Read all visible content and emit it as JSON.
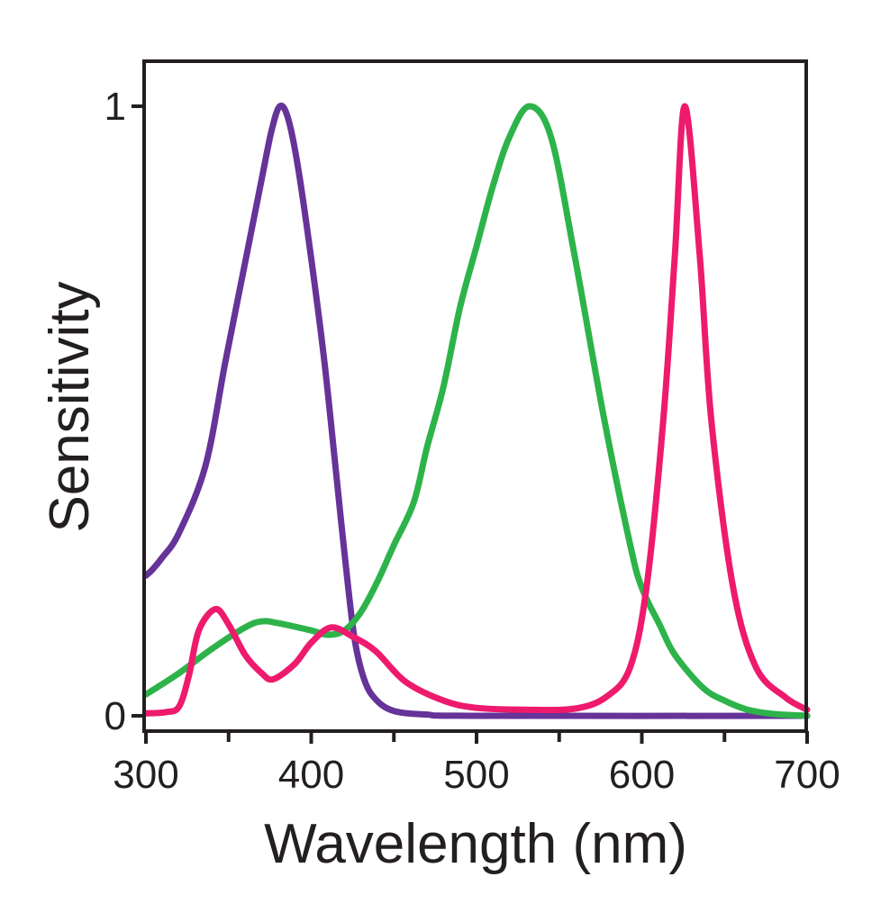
{
  "chart_data": {
    "type": "line",
    "title": "",
    "xlabel": "Wavelength (nm)",
    "ylabel": "Sensitivity",
    "xlim": [
      300,
      700
    ],
    "ylim": [
      0,
      1
    ],
    "x_ticks": [
      300,
      400,
      500,
      600,
      700
    ],
    "x_minor_ticks": [
      350,
      450,
      550,
      650
    ],
    "y_ticks": [
      0,
      1
    ],
    "grid": false,
    "legend": "none",
    "series": [
      {
        "color": "#663399",
        "points": [
          [
            300,
            0.23
          ],
          [
            304,
            0.24
          ],
          [
            310,
            0.26
          ],
          [
            320,
            0.3
          ],
          [
            336,
            0.41
          ],
          [
            348,
            0.58
          ],
          [
            359,
            0.73
          ],
          [
            370,
            0.88
          ],
          [
            376,
            0.96
          ],
          [
            381,
            1.0
          ],
          [
            386,
            0.98
          ],
          [
            392,
            0.9
          ],
          [
            400,
            0.75
          ],
          [
            408,
            0.58
          ],
          [
            415,
            0.4
          ],
          [
            420,
            0.27
          ],
          [
            426,
            0.13
          ],
          [
            432,
            0.06
          ],
          [
            439,
            0.027
          ],
          [
            450,
            0.008
          ],
          [
            470,
            0.002
          ],
          [
            500,
            0
          ],
          [
            700,
            0
          ]
        ]
      },
      {
        "color": "#2db34a",
        "points": [
          [
            300,
            0.035
          ],
          [
            320,
            0.07
          ],
          [
            340,
            0.11
          ],
          [
            360,
            0.145
          ],
          [
            370,
            0.155
          ],
          [
            380,
            0.152
          ],
          [
            400,
            0.14
          ],
          [
            410,
            0.133
          ],
          [
            420,
            0.14
          ],
          [
            430,
            0.17
          ],
          [
            440,
            0.22
          ],
          [
            450,
            0.28
          ],
          [
            462,
            0.35
          ],
          [
            470,
            0.44
          ],
          [
            480,
            0.54
          ],
          [
            490,
            0.67
          ],
          [
            500,
            0.77
          ],
          [
            510,
            0.87
          ],
          [
            520,
            0.95
          ],
          [
            532,
            1.0
          ],
          [
            545,
            0.95
          ],
          [
            559,
            0.76
          ],
          [
            577,
            0.49
          ],
          [
            593,
            0.28
          ],
          [
            600,
            0.21
          ],
          [
            611,
            0.148
          ],
          [
            620,
            0.1
          ],
          [
            637,
            0.046
          ],
          [
            650,
            0.025
          ],
          [
            664,
            0.01
          ],
          [
            680,
            0.003
          ],
          [
            700,
            0
          ]
        ]
      },
      {
        "color": "#ee1a6e",
        "points": [
          [
            300,
            0.004
          ],
          [
            312,
            0.006
          ],
          [
            320,
            0.015
          ],
          [
            326,
            0.066
          ],
          [
            332,
            0.14
          ],
          [
            342,
            0.175
          ],
          [
            350,
            0.15
          ],
          [
            360,
            0.1
          ],
          [
            370,
            0.07
          ],
          [
            377,
            0.06
          ],
          [
            390,
            0.085
          ],
          [
            400,
            0.12
          ],
          [
            412,
            0.145
          ],
          [
            425,
            0.13
          ],
          [
            439,
            0.106
          ],
          [
            457,
            0.056
          ],
          [
            480,
            0.025
          ],
          [
            500,
            0.013
          ],
          [
            530,
            0.01
          ],
          [
            560,
            0.012
          ],
          [
            579,
            0.032
          ],
          [
            593,
            0.08
          ],
          [
            603,
            0.214
          ],
          [
            613,
            0.486
          ],
          [
            620,
            0.756
          ],
          [
            626,
            1.0
          ],
          [
            635,
            0.756
          ],
          [
            642,
            0.486
          ],
          [
            655,
            0.214
          ],
          [
            669,
            0.08
          ],
          [
            687,
            0.03
          ],
          [
            700,
            0.01
          ]
        ]
      }
    ]
  }
}
